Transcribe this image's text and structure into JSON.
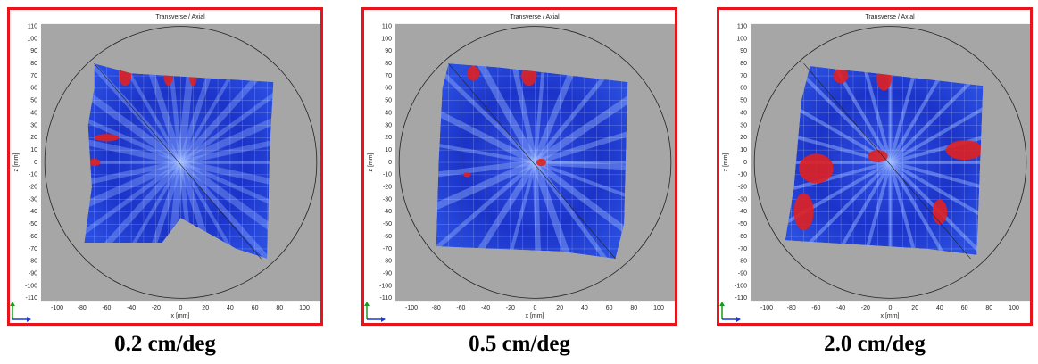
{
  "panels": [
    {
      "title": "Transverse / Axial",
      "x_label": "x [mm]",
      "y_label": "z [mm]",
      "y_ticks": [
        110,
        100,
        90,
        80,
        70,
        60,
        50,
        40,
        30,
        20,
        10,
        0,
        -10,
        -20,
        -30,
        -40,
        -50,
        -60,
        -70,
        -80,
        -90,
        -100,
        -110
      ],
      "x_ticks": [
        -100,
        -80,
        -60,
        -40,
        -20,
        0,
        20,
        40,
        60,
        80,
        100
      ],
      "caption": "0.2 cm/deg"
    },
    {
      "title": "Transverse / Axial",
      "x_label": "x [mm]",
      "y_label": "z [mm]",
      "y_ticks": [
        110,
        100,
        90,
        80,
        70,
        60,
        50,
        40,
        30,
        20,
        10,
        0,
        -10,
        -20,
        -30,
        -40,
        -50,
        -60,
        -70,
        -80,
        -90,
        -100,
        -110
      ],
      "x_ticks": [
        -100,
        -80,
        -60,
        -40,
        -20,
        0,
        20,
        40,
        60,
        80,
        100
      ],
      "caption": "0.5 cm/deg"
    },
    {
      "title": "Transverse / Axial",
      "x_label": "x [mm]",
      "y_label": "z [mm]",
      "y_ticks": [
        110,
        100,
        90,
        80,
        70,
        60,
        50,
        40,
        30,
        20,
        10,
        0,
        -10,
        -20,
        -30,
        -40,
        -50,
        -60,
        -70,
        -80,
        -90,
        -100,
        -110
      ],
      "x_ticks": [
        -100,
        -80,
        -60,
        -40,
        -20,
        0,
        20,
        40,
        60,
        80,
        100
      ],
      "caption": "2.0 cm/deg"
    }
  ]
}
